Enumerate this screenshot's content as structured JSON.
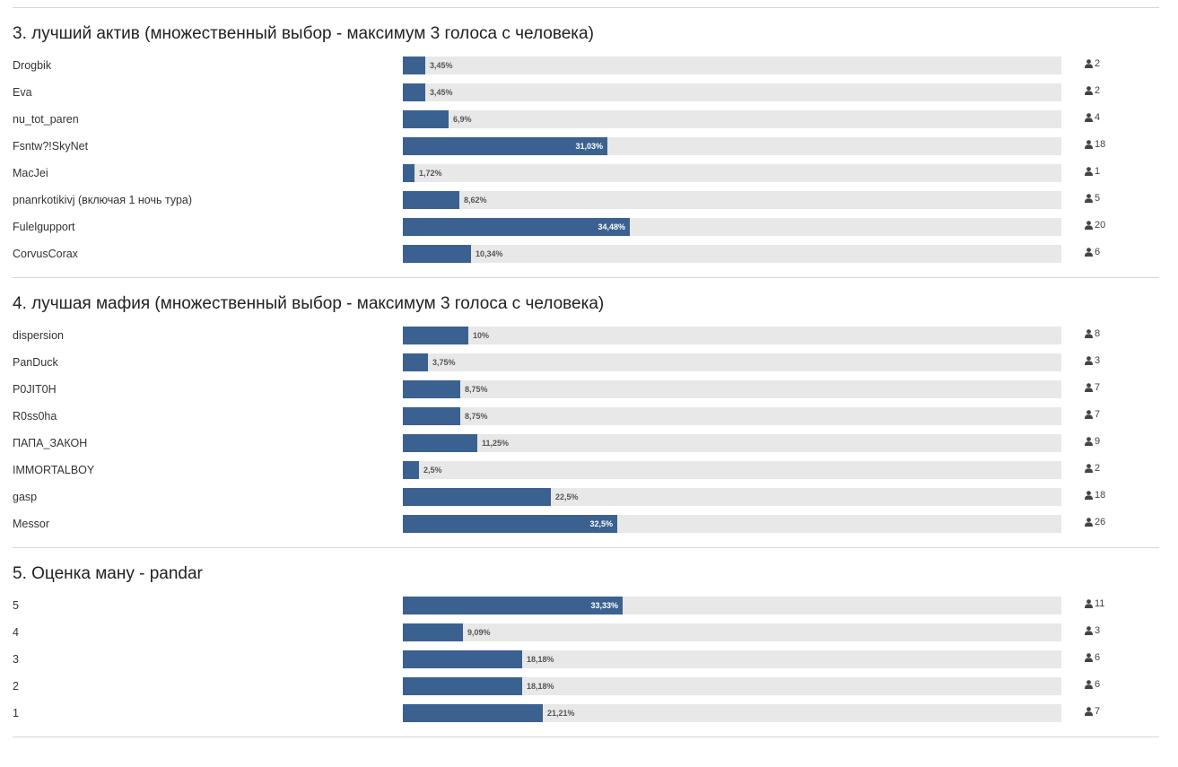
{
  "colors": {
    "bar_fill": "#3b6190",
    "bar_track": "#e8e8e8",
    "divider": "#d6d6d6"
  },
  "icons": {
    "voter": "user-icon"
  },
  "questions": [
    {
      "title": "3. лучший актив (множественный выбор - максимум 3 голоса с человека)",
      "choices": [
        {
          "label": "Drogbik",
          "percent_text": "3,45%",
          "percent": 3.45,
          "votes": "2"
        },
        {
          "label": "Eva",
          "percent_text": "3,45%",
          "percent": 3.45,
          "votes": "2"
        },
        {
          "label": "nu_tot_paren",
          "percent_text": "6,9%",
          "percent": 6.9,
          "votes": "4"
        },
        {
          "label": "Fsntw?!SkyNet",
          "percent_text": "31,03%",
          "percent": 31.03,
          "votes": "18"
        },
        {
          "label": "MacJei",
          "percent_text": "1,72%",
          "percent": 1.72,
          "votes": "1"
        },
        {
          "label": "pnanrkotikivj (включая 1 ночь тура)",
          "percent_text": "8,62%",
          "percent": 8.62,
          "votes": "5"
        },
        {
          "label": "Fulelgupport",
          "percent_text": "34,48%",
          "percent": 34.48,
          "votes": "20"
        },
        {
          "label": "CorvusCorax",
          "percent_text": "10,34%",
          "percent": 10.34,
          "votes": "6"
        }
      ]
    },
    {
      "title": "4. лучшая мафия (множественный выбор - максимум 3 голоса с человека)",
      "choices": [
        {
          "label": "dispersion",
          "percent_text": "10%",
          "percent": 10,
          "votes": "8"
        },
        {
          "label": "PanDuck",
          "percent_text": "3,75%",
          "percent": 3.75,
          "votes": "3"
        },
        {
          "label": "P0JIT0H",
          "percent_text": "8,75%",
          "percent": 8.75,
          "votes": "7"
        },
        {
          "label": "R0ss0ha",
          "percent_text": "8,75%",
          "percent": 8.75,
          "votes": "7"
        },
        {
          "label": "ПАПА_ЗАКОН",
          "percent_text": "11,25%",
          "percent": 11.25,
          "votes": "9"
        },
        {
          "label": "IMMORTALBOY",
          "percent_text": "2,5%",
          "percent": 2.5,
          "votes": "2"
        },
        {
          "label": "gasp",
          "percent_text": "22,5%",
          "percent": 22.5,
          "votes": "18"
        },
        {
          "label": "Messor",
          "percent_text": "32,5%",
          "percent": 32.5,
          "votes": "26"
        }
      ]
    },
    {
      "title": "5. Оценка ману - pandar",
      "choices": [
        {
          "label": "5",
          "percent_text": "33,33%",
          "percent": 33.33,
          "votes": "11"
        },
        {
          "label": "4",
          "percent_text": "9,09%",
          "percent": 9.09,
          "votes": "3"
        },
        {
          "label": "3",
          "percent_text": "18,18%",
          "percent": 18.18,
          "votes": "6"
        },
        {
          "label": "2",
          "percent_text": "18,18%",
          "percent": 18.18,
          "votes": "6"
        },
        {
          "label": "1",
          "percent_text": "21,21%",
          "percent": 21.21,
          "votes": "7"
        }
      ]
    }
  ]
}
